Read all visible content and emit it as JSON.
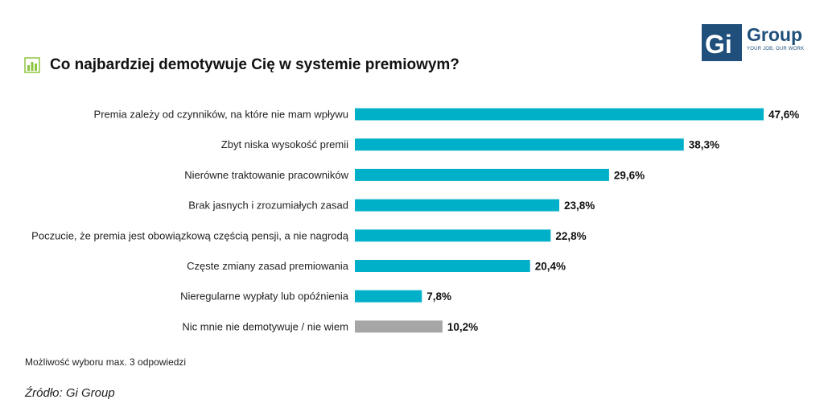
{
  "header": {
    "title": "Co najbardziej demotywuje Cię w systemie premiowym?"
  },
  "logo": {
    "name": "Group",
    "tagline": "YOUR JOB, OUR WORK",
    "brand_color": "#1f4f7a"
  },
  "colors": {
    "bar_primary": "#00b0c8",
    "bar_neutral": "#a6a6a6",
    "icon_accent": "#8dc63f"
  },
  "chart_data": {
    "type": "bar",
    "orientation": "horizontal",
    "title": "Co najbardziej demotywuje Cię w systemie premiowym?",
    "categories": [
      "Premia zależy od czynników, na które nie mam wpływu",
      "Zbyt niska wysokość premii",
      "Nierówne traktowanie pracowników",
      "Brak jasnych i zrozumiałych zasad",
      "Poczucie, że premia jest obowiązkową częścią pensji, a nie nagrodą",
      "Częste zmiany zasad premiowania",
      "Nieregularne wypłaty lub opóźnienia",
      "Nic mnie nie demotywuje / nie wiem"
    ],
    "values": [
      47.6,
      38.3,
      29.6,
      23.8,
      22.8,
      20.4,
      7.8,
      10.2
    ],
    "value_labels": [
      "47,6%",
      "38,3%",
      "29,6%",
      "23,8%",
      "22,8%",
      "20,4%",
      "7,8%",
      "10,2%"
    ],
    "bar_colors": [
      "#00b0c8",
      "#00b0c8",
      "#00b0c8",
      "#00b0c8",
      "#00b0c8",
      "#00b0c8",
      "#00b0c8",
      "#a6a6a6"
    ],
    "xlim": [
      0,
      47.6
    ],
    "grid": false,
    "legend": "none"
  },
  "footnote": "Możliwość wyboru max. 3 odpowiedzi",
  "source": "Źródło: Gi Group"
}
